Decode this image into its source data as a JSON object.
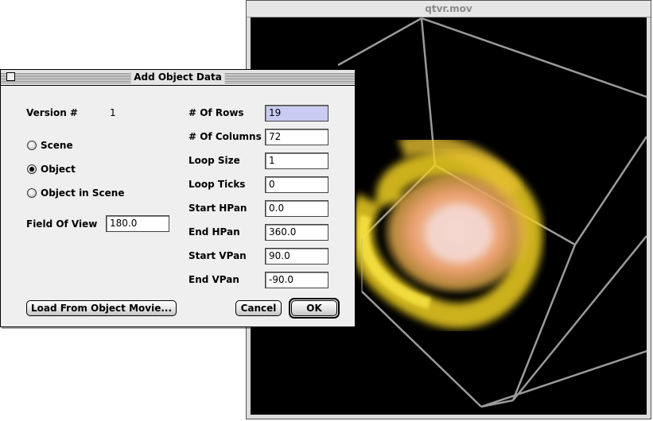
{
  "movie_window": {
    "title": "qtvr.mov"
  },
  "dialog": {
    "title": "Add Object Data",
    "version_label": "Version #",
    "version_value": "1",
    "radios": [
      {
        "label": "Scene",
        "checked": false
      },
      {
        "label": "Object",
        "checked": true
      },
      {
        "label": "Object in Scene",
        "checked": false
      }
    ],
    "field_of_view": {
      "label": "Field Of View",
      "value": "180.0"
    },
    "fields": [
      {
        "label": "# Of Rows",
        "value": "19"
      },
      {
        "label": "# Of Columns",
        "value": "72"
      },
      {
        "label": "Loop Size",
        "value": "1"
      },
      {
        "label": "Loop Ticks",
        "value": "0"
      },
      {
        "label": "Start HPan",
        "value": "0.0"
      },
      {
        "label": "End HPan",
        "value": "360.0"
      },
      {
        "label": "Start VPan",
        "value": "90.0"
      },
      {
        "label": "End VPan",
        "value": "-90.0"
      }
    ],
    "buttons": {
      "load": "Load From Object Movie...",
      "cancel": "Cancel",
      "ok": "OK"
    }
  },
  "colors": {
    "focused_field": "#c9cbf2",
    "movie_background": "#000000",
    "nebula_core": "#f4d2c4",
    "nebula_edge": "#f2e020"
  }
}
